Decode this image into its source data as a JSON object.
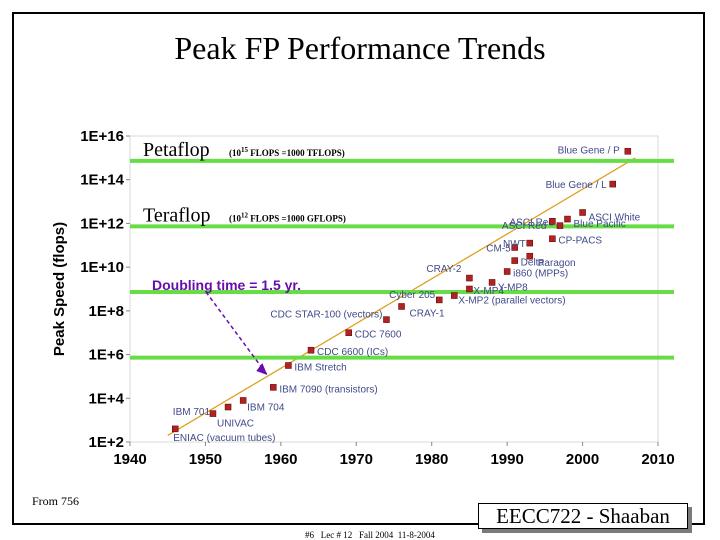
{
  "slide": {
    "title": "Peak FP Performance Trends",
    "source_note": "From 756",
    "footer": "#6   Lec # 12   Fall 2004  11-8-2004",
    "badge": "EECC722 - Shaaban"
  },
  "chart_data": {
    "type": "scatter",
    "title": "",
    "xlabel": "",
    "ylabel": "Peak Speed (flops)",
    "xlim": [
      1940,
      2010
    ],
    "ylim_log10": [
      2,
      16
    ],
    "x_ticks": [
      1940,
      1950,
      1960,
      1970,
      1980,
      1990,
      2000,
      2010
    ],
    "x_tick_labels": [
      "1940",
      "1950",
      "1960",
      "1970",
      "1980",
      "1990",
      "2000",
      "2010"
    ],
    "y_ticks_log10": [
      2,
      4,
      6,
      8,
      10,
      12,
      14,
      16
    ],
    "y_tick_labels": [
      "1E+2",
      "1E+4",
      "1E+6",
      "1E+8",
      "1E+10",
      "1E+12",
      "1E+14",
      "1E+16"
    ],
    "points": [
      {
        "label": "ENIAC (vacuum tubes)",
        "year": 1946,
        "log10_flops": 2.6
      },
      {
        "label": "UNIVAC",
        "year": 1951,
        "log10_flops": 3.3
      },
      {
        "label": "IBM 701",
        "year": 1953,
        "log10_flops": 3.6
      },
      {
        "label": "IBM 704",
        "year": 1955,
        "log10_flops": 3.9
      },
      {
        "label": "IBM 7090 (transistors)",
        "year": 1959,
        "log10_flops": 4.5
      },
      {
        "label": "IBM Stretch",
        "year": 1961,
        "log10_flops": 5.5
      },
      {
        "label": "CDC 6600 (ICs)",
        "year": 1964,
        "log10_flops": 6.2
      },
      {
        "label": "CDC 7600",
        "year": 1969,
        "log10_flops": 7.0
      },
      {
        "label": "CDC STAR-100 (vectors)",
        "year": 1974,
        "log10_flops": 7.6
      },
      {
        "label": "Cyber 205",
        "year": 1981,
        "log10_flops": 8.5
      },
      {
        "label": "CRAY-1",
        "year": 1976,
        "log10_flops": 8.2
      },
      {
        "label": "X-MP2 (parallel vectors)",
        "year": 1983,
        "log10_flops": 8.7
      },
      {
        "label": "X-MP4",
        "year": 1985,
        "log10_flops": 9.0
      },
      {
        "label": "CRAY-2",
        "year": 1985,
        "log10_flops": 9.5
      },
      {
        "label": "Y-MP8",
        "year": 1988,
        "log10_flops": 9.3
      },
      {
        "label": "i860 (MPPs)",
        "year": 1990,
        "log10_flops": 9.8
      },
      {
        "label": "Delta",
        "year": 1991,
        "log10_flops": 10.3
      },
      {
        "label": "CM-5",
        "year": 1991,
        "log10_flops": 10.9
      },
      {
        "label": "NWT",
        "year": 1993,
        "log10_flops": 11.1
      },
      {
        "label": "Paragon",
        "year": 1993,
        "log10_flops": 10.5
      },
      {
        "label": "CP-PACS",
        "year": 1996,
        "log10_flops": 11.3
      },
      {
        "label": "ASCI Red",
        "year": 1997,
        "log10_flops": 11.9
      },
      {
        "label": "ASCI Red",
        "year": 1996,
        "log10_flops": 12.1
      },
      {
        "label": "Blue Pacific",
        "year": 1998,
        "log10_flops": 12.2
      },
      {
        "label": "ASCI White",
        "year": 2000,
        "log10_flops": 12.5
      },
      {
        "label": "Blue Gene / L",
        "year": 2004,
        "log10_flops": 13.8
      },
      {
        "label": "Blue Gene / P",
        "year": 2006,
        "log10_flops": 15.3
      }
    ],
    "trend_line": {
      "from": [
        1945,
        2.3
      ],
      "to": [
        2007,
        15.0
      ]
    },
    "reference_lines": [
      {
        "label": "Petaflop",
        "note": "(10",
        "exp": "15",
        "note_tail": " FLOPS =1000 TFLOPS)",
        "log10_flops": 15
      },
      {
        "label": "Teraflop",
        "note": "(10",
        "exp": "12",
        "note_tail": " FLOPS =1000 GFLOPS)",
        "log10_flops": 12
      },
      {
        "label": "",
        "log10_flops": 9
      },
      {
        "label": "",
        "log10_flops": 6
      }
    ],
    "annotation": {
      "text": "Doubling time = 1.5 yr.",
      "points_to_year": 1959,
      "points_to_log10": 4.7
    },
    "colors": {
      "reference_line": "#66dd44",
      "trend_line": "#e0a020",
      "marker": "#b22222",
      "annotation": "#6a0dad",
      "point_label": "#404a8a",
      "tick_text": "#000000"
    }
  }
}
